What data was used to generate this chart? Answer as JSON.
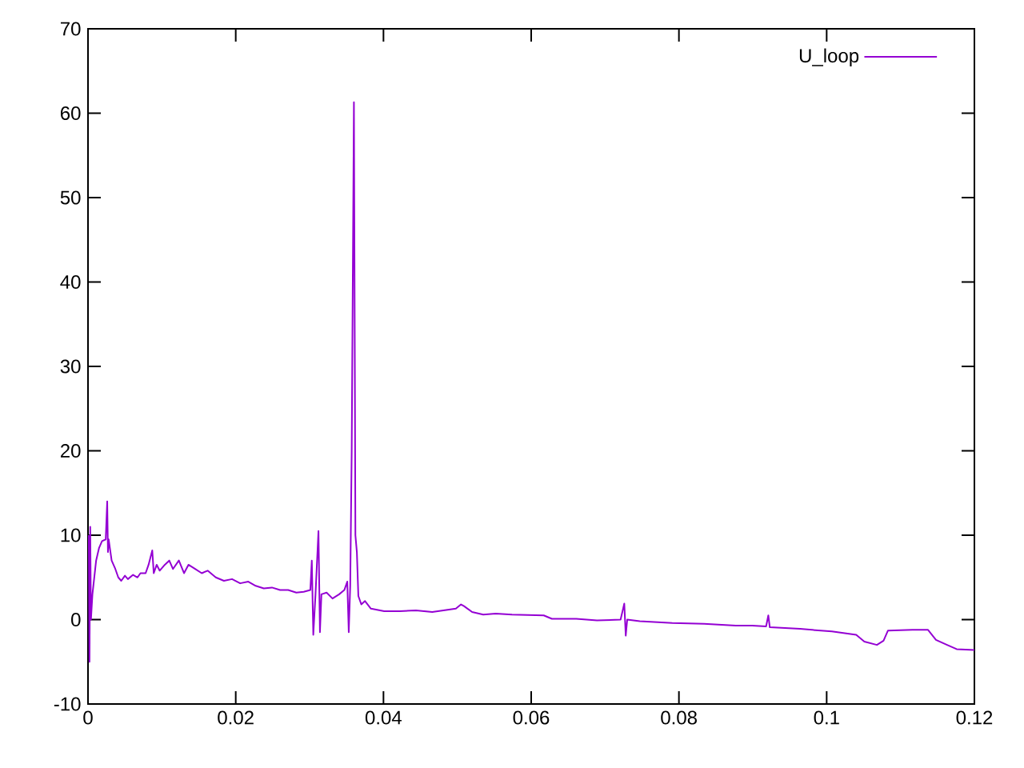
{
  "chart_data": {
    "type": "line",
    "series": [
      {
        "name": "U_loop",
        "color": "#9400d3",
        "x": [
          0.0001,
          0.0002,
          0.0003,
          0.0004,
          0.0006,
          0.0011,
          0.0015,
          0.0019,
          0.0024,
          0.0026,
          0.0027,
          0.0028,
          0.0032,
          0.0037,
          0.0041,
          0.0045,
          0.005,
          0.0054,
          0.0061,
          0.0067,
          0.0071,
          0.0078,
          0.0082,
          0.0087,
          0.0089,
          0.0093,
          0.0097,
          0.0104,
          0.011,
          0.0115,
          0.0123,
          0.013,
          0.0136,
          0.0145,
          0.0154,
          0.0162,
          0.0173,
          0.0184,
          0.0195,
          0.0206,
          0.0217,
          0.0227,
          0.0238,
          0.0249,
          0.026,
          0.0271,
          0.0282,
          0.0292,
          0.0301,
          0.0303,
          0.0305,
          0.0308,
          0.0312,
          0.0314,
          0.0316,
          0.0323,
          0.0331,
          0.034,
          0.0347,
          0.0351,
          0.0353,
          0.0355,
          0.0357,
          0.036,
          0.0362,
          0.0364,
          0.0366,
          0.037,
          0.0375,
          0.0383,
          0.0401,
          0.0422,
          0.0444,
          0.0466,
          0.0498,
          0.0505,
          0.0509,
          0.052,
          0.0535,
          0.0552,
          0.0574,
          0.0617,
          0.0628,
          0.0661,
          0.0689,
          0.0721,
          0.0726,
          0.0728,
          0.073,
          0.0747,
          0.0791,
          0.0834,
          0.0877,
          0.0899,
          0.0918,
          0.0921,
          0.0923,
          0.0964,
          0.1007,
          0.104,
          0.1051,
          0.1068,
          0.1077,
          0.1083,
          0.1116,
          0.1137,
          0.1148,
          0.1163,
          0.1176,
          0.12
        ],
        "values": [
          10,
          -5,
          11,
          0,
          3,
          7,
          8.5,
          9.3,
          9.5,
          14,
          8,
          9.5,
          7,
          6,
          5,
          4.6,
          5.2,
          4.8,
          5.3,
          5,
          5.5,
          5.5,
          6.5,
          8.2,
          5.5,
          6.5,
          5.8,
          6.5,
          7,
          6,
          7,
          5.5,
          6.5,
          6,
          5.5,
          5.8,
          5,
          4.6,
          4.8,
          4.3,
          4.5,
          4,
          3.7,
          3.8,
          3.5,
          3.5,
          3.2,
          3.3,
          3.5,
          7,
          -1.8,
          3,
          10.5,
          -1.5,
          3,
          3.2,
          2.5,
          3,
          3.5,
          4.5,
          -1.5,
          4,
          20,
          61.3,
          10,
          8,
          2.8,
          1.8,
          2.2,
          1.3,
          1,
          1,
          1.1,
          0.9,
          1.3,
          1.8,
          1.6,
          0.9,
          0.6,
          0.7,
          0.6,
          0.5,
          0.1,
          0.1,
          -0.1,
          0,
          1.9,
          -1.9,
          0,
          -0.2,
          -0.4,
          -0.5,
          -0.7,
          -0.7,
          -0.8,
          0.5,
          -0.9,
          -1.1,
          -1.4,
          -1.8,
          -2.6,
          -3,
          -2.5,
          -1.3,
          -1.2,
          -1.2,
          -2.4,
          -3,
          -3.5,
          -3.6
        ]
      }
    ],
    "xlim": [
      0,
      0.12
    ],
    "ylim": [
      -10,
      70
    ],
    "xticks": [
      0,
      0.02,
      0.04,
      0.06,
      0.08,
      0.1,
      0.12
    ],
    "yticks": [
      -10,
      0,
      10,
      20,
      30,
      40,
      50,
      60,
      70
    ],
    "legend": "top right"
  }
}
